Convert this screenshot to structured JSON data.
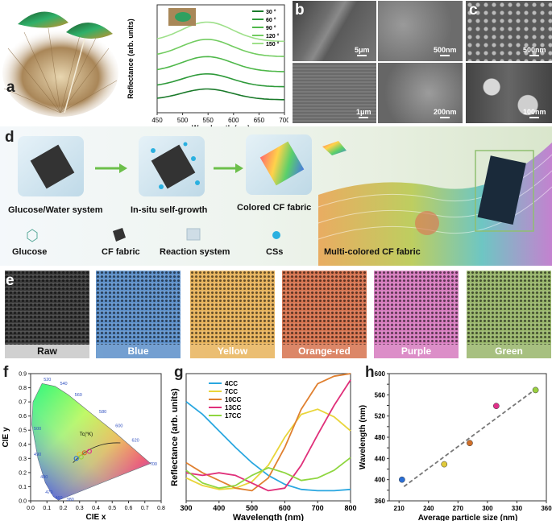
{
  "panels": {
    "a": "a",
    "b": "b",
    "c": "c",
    "d": "d",
    "e": "e",
    "f": "f",
    "g": "g",
    "h": "h"
  },
  "panel_b": {
    "scalebars": [
      "5μm",
      "500nm",
      "1μm",
      "200nm"
    ]
  },
  "panel_c": {
    "scalebars": [
      "500nm",
      "100nm"
    ]
  },
  "panel_d": {
    "steps": [
      "Glucose/Water system",
      "In-situ self-growth",
      "Colored CF fabric"
    ],
    "legend": [
      "Glucose",
      "CF fabric",
      "Reaction system",
      "CSs"
    ],
    "result": "Multi-colored CF fabric"
  },
  "panel_e": {
    "samples": [
      {
        "label": "Raw",
        "color": "#3a3a3a"
      },
      {
        "label": "Blue",
        "color": "#5b8fc9"
      },
      {
        "label": "Yellow",
        "color": "#e8b35a"
      },
      {
        "label": "Orange-red",
        "color": "#d7734e"
      },
      {
        "label": "Purple",
        "color": "#d77bbf"
      },
      {
        "label": "Green",
        "color": "#98b66a"
      }
    ]
  },
  "chart_data": [
    {
      "panel": "a",
      "type": "line",
      "xlabel": "Wavelength (nm)",
      "ylabel": "Reflectance (arb. units)",
      "xlim": [
        450,
        700
      ],
      "xticks": [
        450,
        500,
        550,
        600,
        650,
        700
      ],
      "series": [
        {
          "name": "30 °",
          "color": "#1a7a2a",
          "peak": 548,
          "base": 0.12,
          "amp": 0.1
        },
        {
          "name": "60 °",
          "color": "#2e9a3a",
          "peak": 548,
          "base": 0.24,
          "amp": 0.12
        },
        {
          "name": "90 °",
          "color": "#4fb84a",
          "peak": 548,
          "base": 0.38,
          "amp": 0.14
        },
        {
          "name": "120 °",
          "color": "#72cc60",
          "peak": 548,
          "base": 0.52,
          "amp": 0.16
        },
        {
          "name": "150 °",
          "color": "#9ee08a",
          "peak": 548,
          "base": 0.66,
          "amp": 0.18
        }
      ]
    },
    {
      "panel": "f",
      "type": "scatter",
      "xlabel": "CIE x",
      "ylabel": "CIE y",
      "xlim": [
        0.0,
        0.8
      ],
      "ylim": [
        0.0,
        0.9
      ],
      "xticks": [
        0.0,
        0.1,
        0.2,
        0.3,
        0.4,
        0.5,
        0.6,
        0.7,
        0.8
      ],
      "yticks": [
        0.0,
        0.1,
        0.2,
        0.3,
        0.4,
        0.5,
        0.6,
        0.7,
        0.8,
        0.9
      ],
      "locus_labels": [
        "520",
        "540",
        "560",
        "580",
        "600",
        "620",
        "700",
        "500",
        "490",
        "480",
        "470",
        "460",
        "380"
      ],
      "annotation": "Tc(°K)",
      "points": [
        {
          "x": 0.28,
          "y": 0.3
        },
        {
          "x": 0.3,
          "y": 0.33
        },
        {
          "x": 0.33,
          "y": 0.34
        },
        {
          "x": 0.36,
          "y": 0.35
        },
        {
          "x": 0.31,
          "y": 0.31
        }
      ]
    },
    {
      "panel": "g",
      "type": "line",
      "xlabel": "Wavelength (nm)",
      "ylabel": "Reflectance (arb. units)",
      "xlim": [
        300,
        800
      ],
      "ylim": [
        0,
        1
      ],
      "xticks": [
        300,
        400,
        500,
        600,
        700,
        800
      ],
      "series": [
        {
          "name": "4CC",
          "color": "#2aa7e0",
          "x": [
            300,
            350,
            400,
            450,
            500,
            550,
            600,
            650,
            700,
            750,
            800
          ],
          "y": [
            0.78,
            0.68,
            0.55,
            0.42,
            0.3,
            0.2,
            0.13,
            0.09,
            0.08,
            0.08,
            0.09
          ]
        },
        {
          "name": "7CC",
          "color": "#e9d53a",
          "x": [
            300,
            350,
            400,
            450,
            500,
            550,
            600,
            650,
            700,
            750,
            800
          ],
          "y": [
            0.18,
            0.12,
            0.09,
            0.1,
            0.15,
            0.28,
            0.5,
            0.68,
            0.72,
            0.66,
            0.55
          ]
        },
        {
          "name": "10CC",
          "color": "#e08030",
          "x": [
            300,
            350,
            400,
            450,
            500,
            550,
            600,
            650,
            700,
            750,
            800
          ],
          "y": [
            0.3,
            0.22,
            0.16,
            0.1,
            0.08,
            0.18,
            0.42,
            0.72,
            0.92,
            0.98,
            1.0
          ]
        },
        {
          "name": "13CC",
          "color": "#e0307a",
          "x": [
            300,
            350,
            400,
            450,
            500,
            550,
            600,
            650,
            700,
            750,
            800
          ],
          "y": [
            0.22,
            0.2,
            0.22,
            0.2,
            0.14,
            0.08,
            0.1,
            0.28,
            0.52,
            0.75,
            0.95
          ]
        },
        {
          "name": "17CC",
          "color": "#8fd640",
          "x": [
            300,
            350,
            400,
            450,
            500,
            550,
            600,
            650,
            700,
            750,
            800
          ],
          "y": [
            0.24,
            0.14,
            0.1,
            0.12,
            0.2,
            0.26,
            0.22,
            0.16,
            0.18,
            0.24,
            0.34
          ]
        }
      ]
    },
    {
      "panel": "h",
      "type": "scatter",
      "xlabel": "Average particle size (nm)",
      "ylabel": "Wavelength (nm)",
      "xlim": [
        200,
        360
      ],
      "ylim": [
        360,
        600
      ],
      "xticks": [
        210,
        240,
        270,
        300,
        330,
        360
      ],
      "yticks": [
        360,
        380,
        400,
        420,
        440,
        460,
        480,
        500,
        520,
        540,
        560,
        580,
        600
      ],
      "points": [
        {
          "x": 213,
          "y": 400,
          "color": "#2a6fd6"
        },
        {
          "x": 256,
          "y": 429,
          "color": "#e0c93a"
        },
        {
          "x": 282,
          "y": 469,
          "color": "#d0702a"
        },
        {
          "x": 309,
          "y": 539,
          "color": "#e0308a"
        },
        {
          "x": 349,
          "y": 569,
          "color": "#9ad040"
        }
      ],
      "fit": {
        "x1": 215,
        "y1": 387,
        "x2": 350,
        "y2": 572
      }
    }
  ]
}
